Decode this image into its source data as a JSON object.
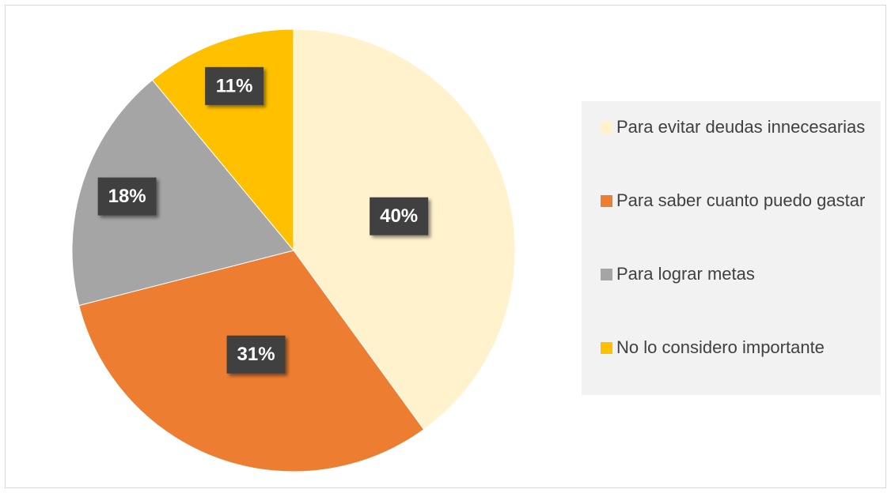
{
  "chart_data": {
    "type": "pie",
    "categories": [
      "Para evitar deudas innecesarias",
      "Para saber cuanto puedo gastar",
      "Para lograr metas",
      "No lo considero importante"
    ],
    "values": [
      40,
      31,
      18,
      11
    ],
    "value_labels": [
      "40%",
      "31%",
      "18%",
      "11%"
    ],
    "colors": [
      "#FFF2CC",
      "#ED7D31",
      "#A5A5A5",
      "#FFC000"
    ],
    "legend": "right"
  }
}
